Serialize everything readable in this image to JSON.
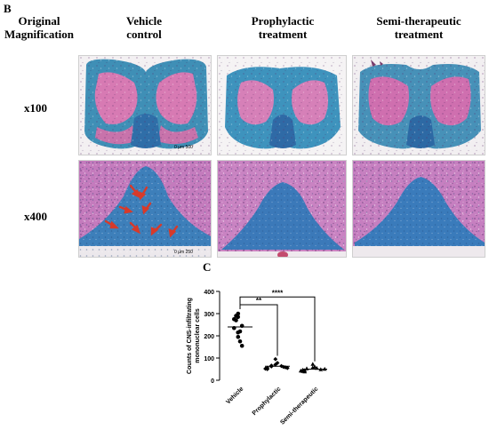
{
  "panel_b_label": "B",
  "panel_c_label": "C",
  "headers": {
    "magnification": [
      "Original",
      "Magnification"
    ],
    "vehicle": [
      "Vehicle",
      "control"
    ],
    "prophylactic": [
      "Prophylactic",
      "treatment"
    ],
    "semi": [
      "Semi-therapeutic",
      "treatment"
    ]
  },
  "rows": {
    "low": "x100",
    "high": "x400"
  },
  "scalebars": {
    "low": [
      "0",
      "µm",
      "500"
    ],
    "high": [
      "0",
      "µm",
      "250"
    ]
  },
  "colors": {
    "stain_blue": "#3f87b4",
    "stain_pink": "#d77ab3",
    "arrow": "#d73a2a"
  },
  "chart_data": {
    "type": "scatter",
    "categories": [
      "Vehicle",
      "Prophylactic",
      "Semi-therapeutic"
    ],
    "ylabel": "Counts of CNS-infiltrating mononuclear cells",
    "ylim": [
      0,
      400
    ],
    "yticks": [
      0,
      100,
      200,
      300,
      400
    ],
    "series": [
      {
        "values": [
          300,
          290,
          285,
          275,
          270,
          245,
          235,
          220,
          215,
          195,
          175,
          155
        ],
        "mean": 240
      },
      {
        "values": [
          95,
          78,
          70,
          66,
          64,
          62,
          60,
          58,
          56,
          55,
          52,
          50
        ],
        "mean": 63
      },
      {
        "values": [
          72,
          60,
          56,
          54,
          52,
          50,
          48,
          46,
          44,
          42,
          40,
          38
        ],
        "mean": 50
      }
    ],
    "significance": [
      {
        "from": "Vehicle",
        "to": "Prophylactic",
        "label": "**"
      },
      {
        "from": "Vehicle",
        "to": "Semi-therapeutic",
        "label": "****"
      }
    ],
    "grid": false,
    "legend": "none"
  }
}
